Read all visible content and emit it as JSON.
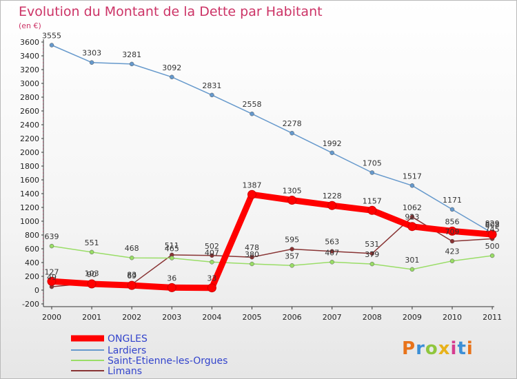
{
  "chart_data": {
    "type": "line",
    "title": "Evolution du Montant de la Dette par Habitant",
    "subtitle": "(en €)",
    "categories": [
      "2000",
      "2001",
      "2002",
      "2003",
      "2004",
      "2005",
      "2006",
      "2007",
      "2008",
      "2009",
      "2010",
      "2011"
    ],
    "ylim": [
      -200,
      3600
    ],
    "yticks": [
      -200,
      0,
      200,
      400,
      600,
      800,
      1000,
      1200,
      1400,
      1600,
      1800,
      2000,
      2200,
      2400,
      2600,
      2800,
      3000,
      3200,
      3400,
      3600
    ],
    "grid": false,
    "legend_placement": "bottom-left",
    "series": [
      {
        "name": "ONGLES",
        "color": "#ff0000",
        "values": [
          127,
          90,
          69,
          36,
          33,
          1387,
          1305,
          1228,
          1157,
          923,
          856,
          808
        ]
      },
      {
        "name": "Lardiers",
        "color": "#6699cc",
        "values": [
          3555,
          3303,
          3281,
          3092,
          2831,
          2558,
          2278,
          1992,
          1705,
          1517,
          1171,
          829
        ]
      },
      {
        "name": "Saint-Etienne-les-Orgues",
        "color": "#99dd66",
        "values": [
          639,
          551,
          468,
          465,
          407,
          380,
          357,
          407,
          379,
          301,
          423,
          500
        ]
      },
      {
        "name": "Limans",
        "color": "#883333",
        "values": [
          49,
          103,
          83,
          511,
          502,
          478,
          595,
          563,
          531,
          1062,
          709,
          745
        ]
      }
    ],
    "labels": [
      [
        "127",
        "90",
        "69",
        "36",
        "33",
        "1387",
        "1305",
        "1228",
        "1157",
        "923",
        "856",
        "808"
      ],
      [
        "3555",
        "3303",
        "3281",
        "3092",
        "2831",
        "2558",
        "2278",
        "1992",
        "1705",
        "1517",
        "1171",
        "829"
      ],
      [
        "639",
        "551",
        "468",
        "465",
        "407",
        "380",
        "357",
        "407",
        "379",
        "301",
        "423",
        "500"
      ],
      [
        "49",
        "103",
        "83",
        "511",
        "502",
        "478",
        "595",
        "563",
        "531",
        "1062",
        "709",
        "745"
      ]
    ]
  },
  "logo": {
    "text": "Proxiti",
    "colors": [
      "#e8731a",
      "#3c8fd6",
      "#8fc63d",
      "#e8b21a",
      "#d63c8f",
      "#3c8fd6",
      "#e8731a"
    ]
  }
}
